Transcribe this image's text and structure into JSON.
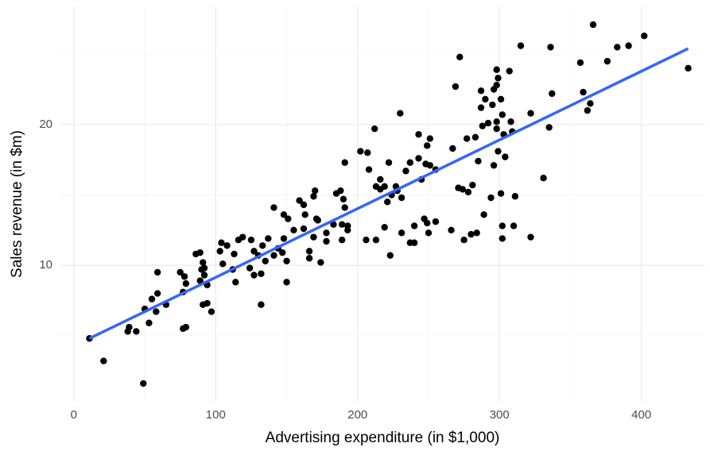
{
  "chart_data": {
    "type": "scatter",
    "x_label": "Advertising expenditure (in $1,000)",
    "y_label": "Sales revenue (in $m)",
    "xlim": [
      -10,
      445
    ],
    "ylim": [
      0.3,
      28.4
    ],
    "xticks": [
      0,
      100,
      200,
      300,
      400
    ],
    "yticks": [
      10,
      20
    ],
    "xminor": [
      50,
      150,
      250,
      350
    ],
    "yminor": [
      5,
      15,
      25
    ],
    "grid": true,
    "color": "#000000",
    "x": [
      11,
      21,
      49,
      38,
      39,
      44,
      50,
      53,
      55,
      58,
      59,
      65,
      59,
      75,
      77,
      77,
      79,
      78,
      79,
      86,
      89,
      91,
      92,
      90,
      92,
      89,
      94,
      91,
      94,
      97,
      103,
      104,
      108,
      105,
      112,
      114,
      113,
      116,
      119,
      124,
      125,
      127,
      127,
      130,
      133,
      135,
      132,
      132,
      137,
      141,
      141,
      144,
      147,
      148,
      148,
      151,
      150,
      150,
      155,
      159,
      162,
      163,
      162,
      166,
      166,
      169,
      169,
      170,
      171,
      172,
      174,
      178,
      178,
      183,
      185,
      188,
      189,
      189,
      190,
      191,
      193,
      193,
      191,
      202,
      207,
      206,
      208,
      212,
      213,
      213,
      216,
      216,
      219,
      219,
      222,
      221,
      223,
      224,
      227,
      228,
      231,
      231,
      230,
      234,
      237,
      237,
      240,
      240,
      243,
      243,
      245,
      247,
      248,
      249,
      250,
      249,
      251,
      251,
      255,
      255,
      266,
      267,
      269,
      271,
      272,
      274,
      277,
      278,
      275,
      280,
      281,
      284,
      283,
      285,
      287,
      287,
      288,
      290,
      289,
      292,
      294,
      296,
      298,
      295,
      298,
      299,
      298,
      298,
      296,
      299,
      301,
      302,
      302,
      301,
      303,
      304,
      308,
      309,
      307,
      310,
      311,
      315,
      322,
      322,
      331,
      335,
      336,
      337,
      357,
      359,
      362,
      364,
      366,
      376,
      383,
      391,
      402,
      433,
      302
    ],
    "values": [
      4.8,
      3.2,
      1.6,
      5.3,
      5.6,
      5.3,
      6.9,
      5.9,
      7.6,
      6.7,
      8.0,
      7.2,
      9.5,
      9.5,
      8.1,
      5.5,
      5.6,
      9.2,
      8.7,
      10.8,
      10.9,
      10.2,
      9.8,
      9.7,
      9.3,
      8.9,
      8.6,
      7.2,
      7.3,
      6.7,
      11.0,
      11.6,
      11.4,
      10.1,
      9.7,
      8.8,
      10.8,
      11.8,
      12.0,
      9.8,
      11.8,
      11.0,
      9.3,
      10.7,
      11.4,
      10.3,
      9.4,
      7.2,
      11.9,
      14.1,
      10.7,
      11.2,
      10.9,
      11.9,
      13.6,
      13.3,
      10.3,
      8.8,
      12.5,
      14.6,
      14.3,
      13.6,
      12.6,
      11.0,
      10.5,
      12.0,
      14.9,
      15.3,
      13.3,
      13.2,
      10.2,
      12.3,
      11.7,
      12.9,
      15.1,
      15.3,
      12.9,
      11.8,
      14.7,
      14.1,
      12.8,
      12.5,
      17.3,
      18.1,
      18.0,
      11.8,
      16.8,
      19.7,
      15.6,
      11.8,
      16.1,
      15.4,
      15.6,
      12.7,
      17.3,
      14.5,
      10.7,
      15.0,
      15.6,
      15.3,
      14.8,
      12.3,
      20.8,
      16.7,
      11.6,
      17.3,
      11.6,
      12.8,
      17.6,
      19.3,
      16.1,
      13.3,
      17.2,
      13.0,
      12.3,
      18.5,
      19.0,
      17.1,
      16.8,
      13.1,
      12.5,
      18.3,
      22.7,
      15.5,
      24.8,
      15.4,
      19.0,
      15.2,
      11.8,
      12.2,
      15.7,
      12.3,
      19.1,
      17.4,
      21.2,
      22.4,
      19.9,
      21.8,
      13.6,
      20.1,
      14.8,
      22.5,
      22.8,
      21.4,
      23.9,
      23.3,
      20.2,
      19.7,
      17.1,
      18.1,
      15.1,
      11.9,
      12.8,
      21.8,
      19.3,
      17.7,
      20.2,
      19.5,
      23.8,
      12.8,
      14.9,
      25.6,
      20.8,
      12.0,
      16.2,
      19.8,
      25.5,
      22.2,
      24.4,
      22.3,
      21.0,
      21.5,
      27.1,
      24.5,
      25.5,
      25.6,
      26.3,
      24.0,
      20.7
    ],
    "fit": {
      "x": [
        11,
        433
      ],
      "values": [
        4.8,
        25.4
      ],
      "color": "#3366ff"
    }
  }
}
